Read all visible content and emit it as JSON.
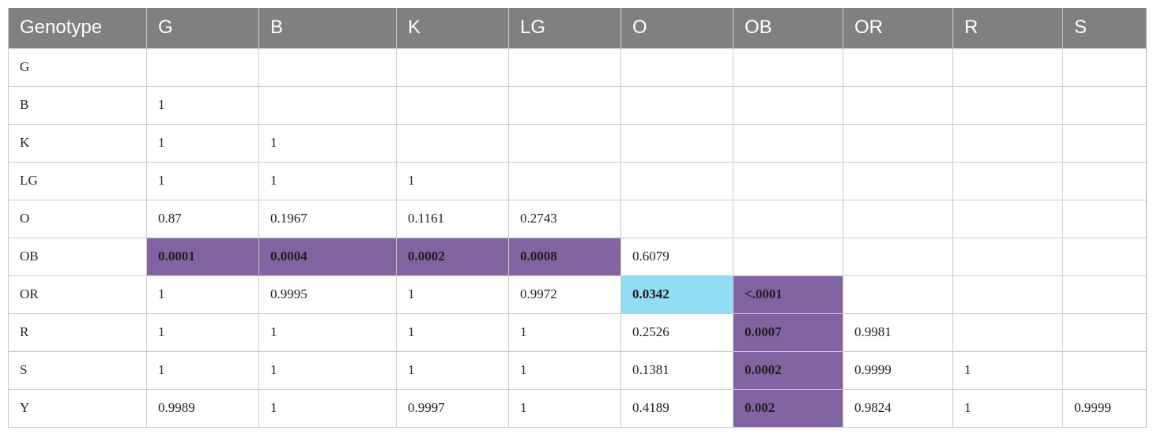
{
  "table": {
    "headers": [
      "Genotype",
      "G",
      "B",
      "K",
      "LG",
      "O",
      "OB",
      "OR",
      "R",
      "S"
    ],
    "rows": [
      {
        "label": "G",
        "cells": [
          "",
          "",
          "",
          "",
          "",
          "",
          "",
          "",
          ""
        ]
      },
      {
        "label": "B",
        "cells": [
          "1",
          "",
          "",
          "",
          "",
          "",
          "",
          "",
          ""
        ]
      },
      {
        "label": "K",
        "cells": [
          "1",
          "1",
          "",
          "",
          "",
          "",
          "",
          "",
          ""
        ]
      },
      {
        "label": "LG",
        "cells": [
          "1",
          "1",
          "1",
          "",
          "",
          "",
          "",
          "",
          ""
        ]
      },
      {
        "label": "O",
        "cells": [
          "0.87",
          "0.1967",
          "0.1161",
          "0.2743",
          "",
          "",
          "",
          "",
          ""
        ]
      },
      {
        "label": "OB",
        "cells": [
          "0.0001",
          "0.0004",
          "0.0002",
          "0.0008",
          "0.6079",
          "",
          "",
          "",
          ""
        ]
      },
      {
        "label": "OR",
        "cells": [
          "1",
          "0.9995",
          "1",
          "0.9972",
          "0.0342",
          "<.0001",
          "",
          "",
          ""
        ]
      },
      {
        "label": "R",
        "cells": [
          "1",
          "1",
          "1",
          "1",
          "0.2526",
          "0.0007",
          "0.9981",
          "",
          ""
        ]
      },
      {
        "label": "S",
        "cells": [
          "1",
          "1",
          "1",
          "1",
          "0.1381",
          "0.0002",
          "0.9999",
          "1",
          ""
        ]
      },
      {
        "label": "Y",
        "cells": [
          "0.9989",
          "1",
          "0.9997",
          "1",
          "0.4189",
          "0.002",
          "0.9824",
          "1",
          "0.9999"
        ]
      }
    ]
  },
  "colors": {
    "header_bg": "#808080",
    "highlight_purple": "#8064a2",
    "highlight_blue": "#93dcf5",
    "grid": "#c9c9c9"
  }
}
